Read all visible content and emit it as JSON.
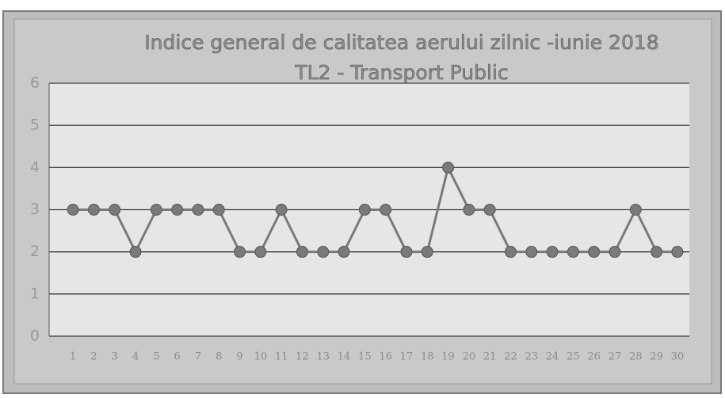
{
  "chart_data": {
    "type": "line",
    "title": "Indice general de calitatea aerului zilnic -iunie 2018",
    "subtitle": "TL2 - Transport Public",
    "categories": [
      "1",
      "2",
      "3",
      "4",
      "5",
      "6",
      "7",
      "8",
      "9",
      "10",
      "11",
      "12",
      "13",
      "14",
      "15",
      "16",
      "17",
      "18",
      "19",
      "20",
      "21",
      "22",
      "23",
      "24",
      "25",
      "26",
      "27",
      "28",
      "29",
      "30"
    ],
    "series": [
      {
        "color": "#7a7a7a",
        "values": [
          3,
          3,
          3,
          2,
          3,
          3,
          3,
          3,
          2,
          2,
          3,
          2,
          2,
          2,
          3,
          3,
          2,
          2,
          4,
          3,
          3,
          2,
          2,
          2,
          2,
          2,
          2,
          3,
          2,
          2
        ]
      }
    ],
    "ylim": [
      0,
      6
    ],
    "yticks": [
      0,
      1,
      2,
      3,
      4,
      5,
      6
    ],
    "grid": true
  }
}
